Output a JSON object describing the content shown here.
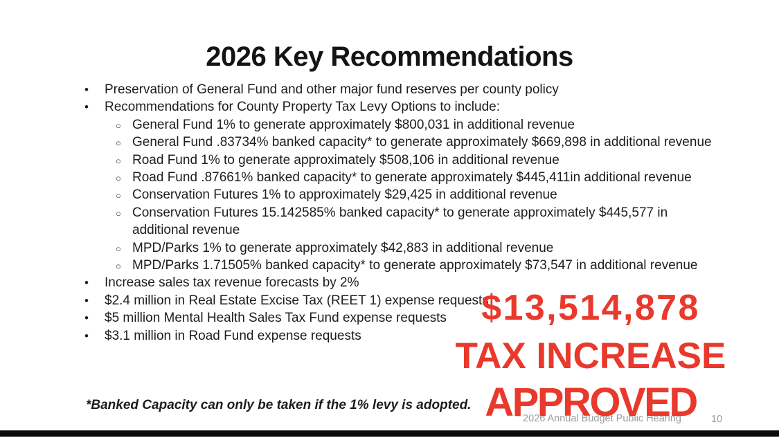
{
  "slide": {
    "title": "2026 Key Recommendations",
    "markers": {
      "level1": "•",
      "level2": "○"
    },
    "bullets": [
      {
        "level": 1,
        "text": "Preservation of General Fund and other major fund reserves per county policy"
      },
      {
        "level": 1,
        "text": "Recommendations for County Property Tax Levy Options to include:"
      },
      {
        "level": 2,
        "text": "General Fund 1% to generate approximately $800,031 in additional revenue"
      },
      {
        "level": 2,
        "text": "General Fund .83734% banked capacity* to generate approximately $669,898 in additional revenue"
      },
      {
        "level": 2,
        "text": "Road Fund 1% to generate approximately $508,106 in additional revenue"
      },
      {
        "level": 2,
        "text": "Road Fund .87661% banked capacity* to generate approximately $445,411in additional revenue"
      },
      {
        "level": 2,
        "text": "Conservation Futures 1% to approximately $29,425 in additional revenue"
      },
      {
        "level": 2,
        "text": "Conservation Futures 15.142585% banked capacity* to generate approximately $445,577 in additional revenue"
      },
      {
        "level": 2,
        "text": "MPD/Parks 1% to generate approximately $42,883 in additional revenue"
      },
      {
        "level": 2,
        "text": "MPD/Parks 1.71505% banked capacity* to generate approximately $73,547 in additional revenue"
      },
      {
        "level": 1,
        "text": "Increase sales tax revenue forecasts by 2%"
      },
      {
        "level": 1,
        "text": "$2.4 million in Real Estate Excise Tax (REET 1) expense requests"
      },
      {
        "level": 1,
        "text": "$5 million Mental Health Sales Tax Fund expense requests"
      },
      {
        "level": 1,
        "text": "$3.1 million in Road Fund expense requests"
      }
    ],
    "footnote": "*Banked Capacity can only be taken if the 1% levy is adopted.",
    "footer": {
      "caption": "2026 Annual Budget Public Hearing",
      "page_number": "10"
    }
  },
  "overlay": {
    "color": "#e8392c",
    "lines": [
      "$13,514,878",
      "TAX INCREASE",
      "APPROVED"
    ]
  }
}
